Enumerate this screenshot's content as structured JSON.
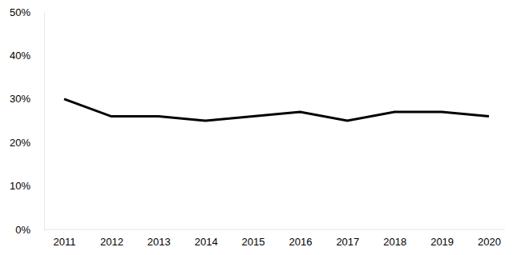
{
  "chart_data": {
    "type": "line",
    "categories": [
      "2011",
      "2012",
      "2013",
      "2014",
      "2015",
      "2016",
      "2017",
      "2018",
      "2019",
      "2020"
    ],
    "values": [
      30,
      26,
      26,
      25,
      26,
      27,
      25,
      27,
      27,
      26
    ],
    "color": "#000000",
    "ylim": [
      0,
      50
    ],
    "yticks": [
      {
        "value": 0,
        "label": "0%"
      },
      {
        "value": 10,
        "label": "10%"
      },
      {
        "value": 20,
        "label": "20%"
      },
      {
        "value": 30,
        "label": "30%"
      },
      {
        "value": 40,
        "label": "40%"
      },
      {
        "value": 50,
        "label": "50%"
      }
    ],
    "grid": false
  }
}
